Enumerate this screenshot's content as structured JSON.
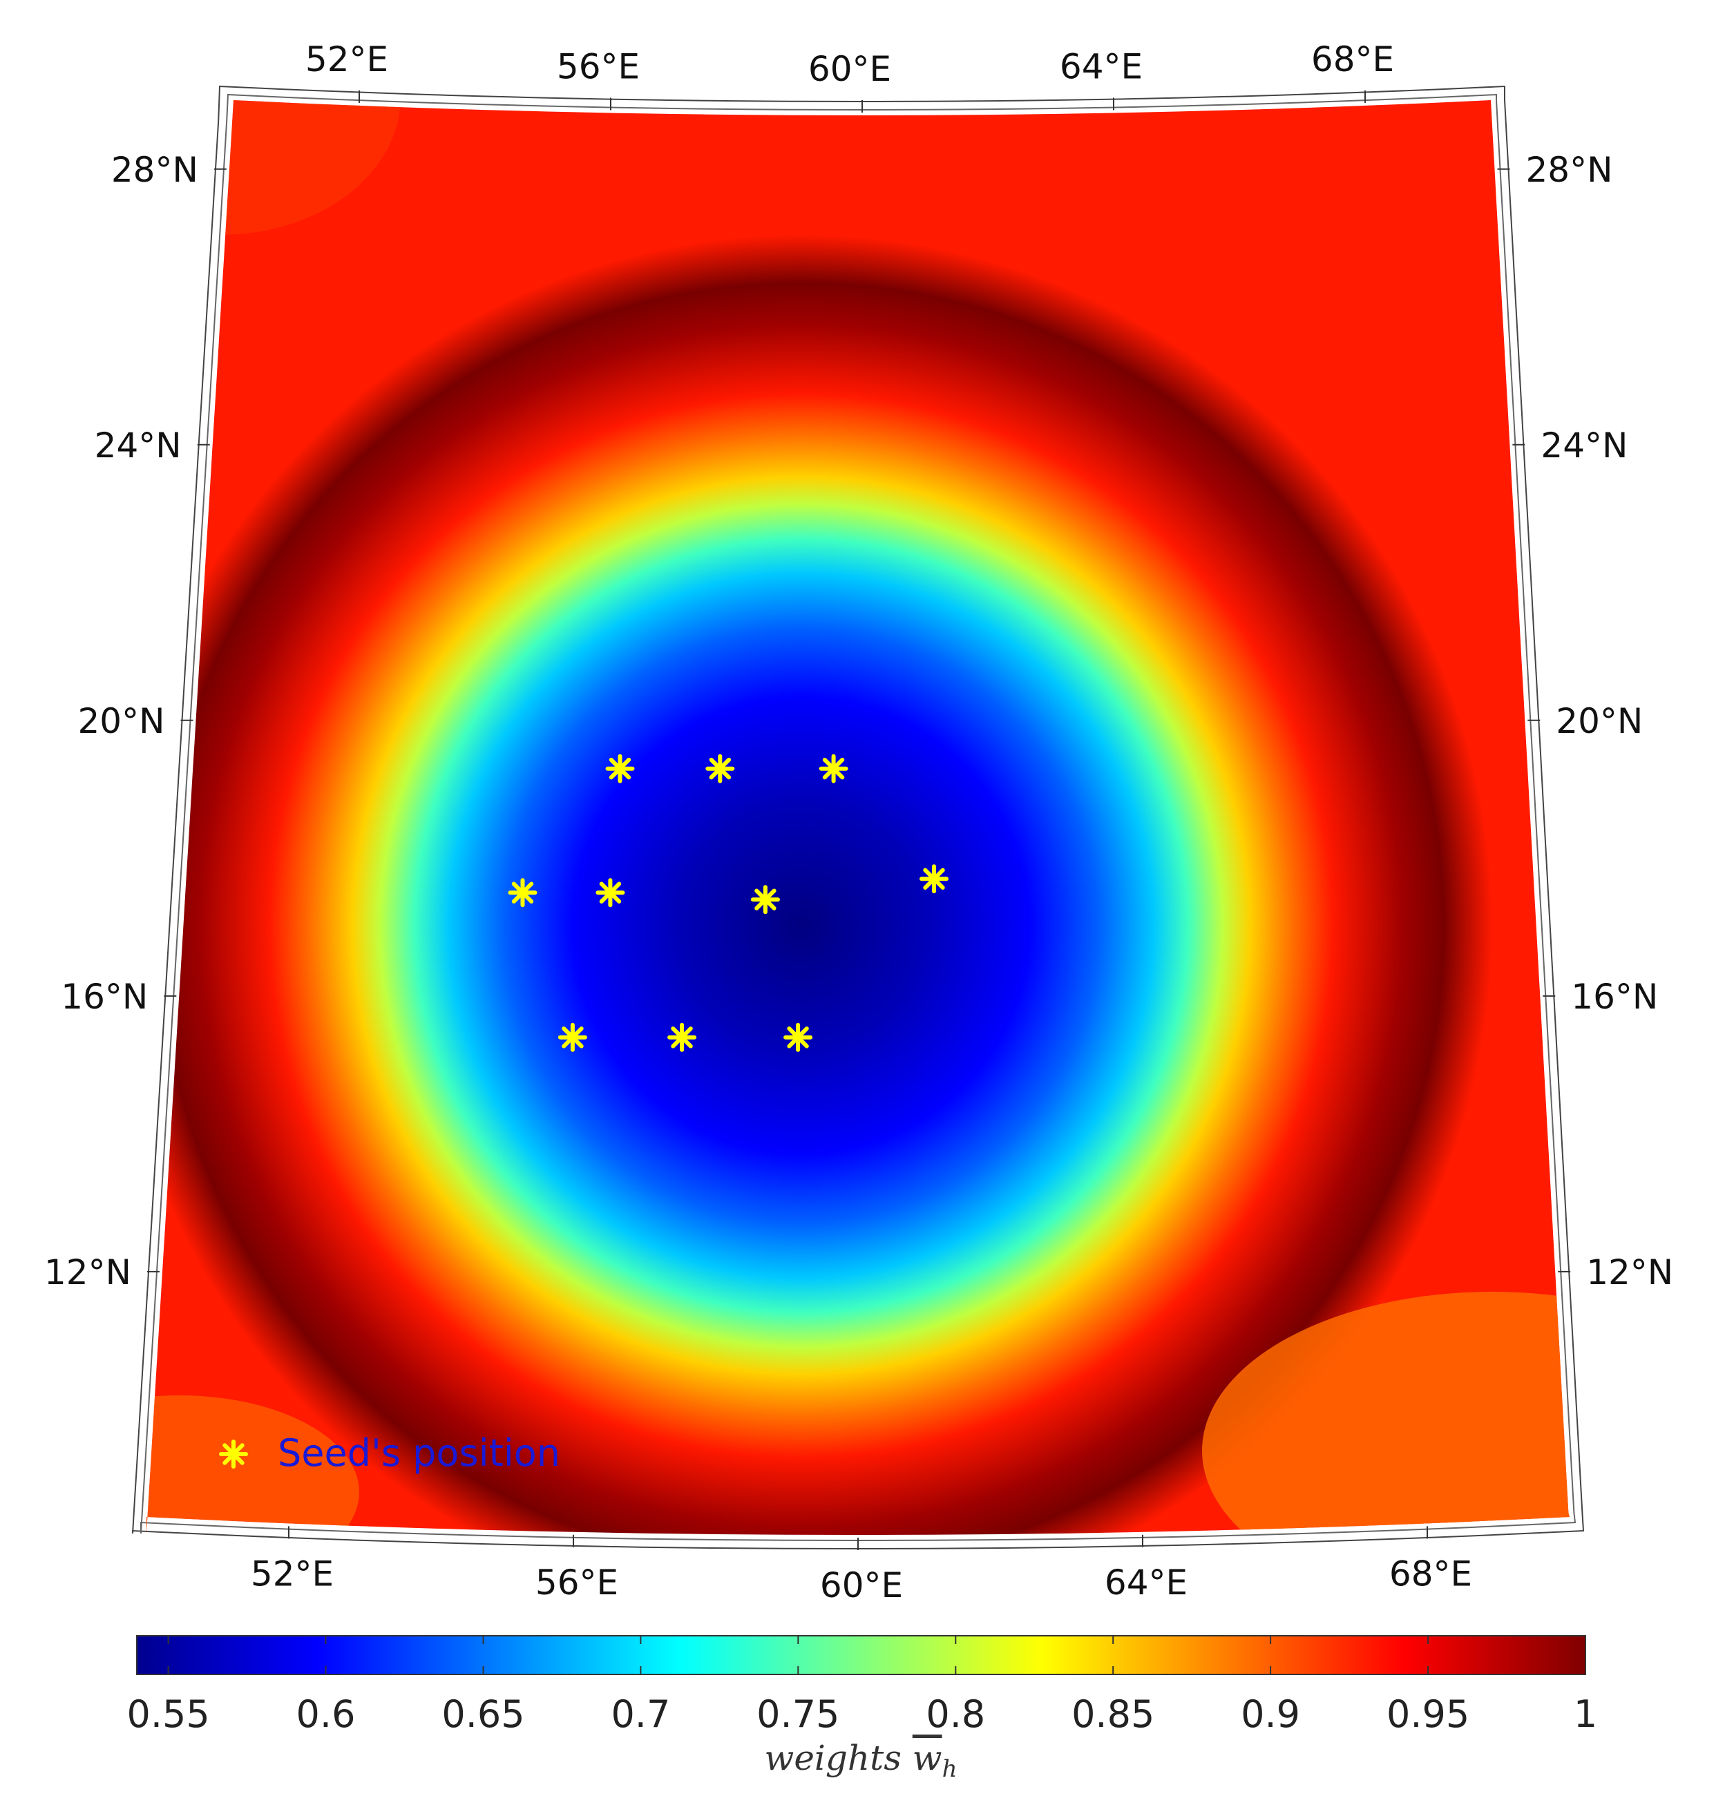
{
  "map": {
    "lon_labels_top": [
      "52°E",
      "56°E",
      "60°E",
      "64°E",
      "68°E"
    ],
    "lon_labels_bottom": [
      "52°E",
      "56°E",
      "60°E",
      "64°E",
      "68°E"
    ],
    "lat_labels_left": [
      "28°N",
      "24°N",
      "20°N",
      "16°N",
      "12°N"
    ],
    "lat_labels_right": [
      "28°N",
      "24°N",
      "20°N",
      "16°N",
      "12°N"
    ],
    "field": {
      "min": 0.55,
      "max": 1.0,
      "minimum_location": {
        "lon": 59.5,
        "lat": 17.5
      }
    }
  },
  "seeds": {
    "legend_label": "Seed's position",
    "marker_color": "#ffff00",
    "legend_text_color": "#1a1ad6",
    "points": [
      {
        "lon": 56.4,
        "lat": 19.3
      },
      {
        "lon": 57.9,
        "lat": 19.3
      },
      {
        "lon": 59.6,
        "lat": 19.3
      },
      {
        "lon": 55.0,
        "lat": 17.5
      },
      {
        "lon": 56.3,
        "lat": 17.5
      },
      {
        "lon": 58.6,
        "lat": 17.4
      },
      {
        "lon": 61.1,
        "lat": 17.7
      },
      {
        "lon": 55.8,
        "lat": 15.4
      },
      {
        "lon": 57.4,
        "lat": 15.4
      },
      {
        "lon": 59.1,
        "lat": 15.4
      }
    ]
  },
  "colorbar": {
    "colormap": "jet",
    "min": 0.54,
    "max": 1.0,
    "tick_values": [
      0.55,
      0.6,
      0.65,
      0.7,
      0.75,
      0.8,
      0.85,
      0.9,
      0.95,
      1.0
    ],
    "tick_labels": [
      "0.55",
      "0.6",
      "0.65",
      "0.7",
      "0.75",
      "0.8",
      "0.85",
      "0.9",
      "0.95",
      "1"
    ],
    "label_main": "weights ",
    "label_symbol": "w",
    "label_sub": "h"
  }
}
